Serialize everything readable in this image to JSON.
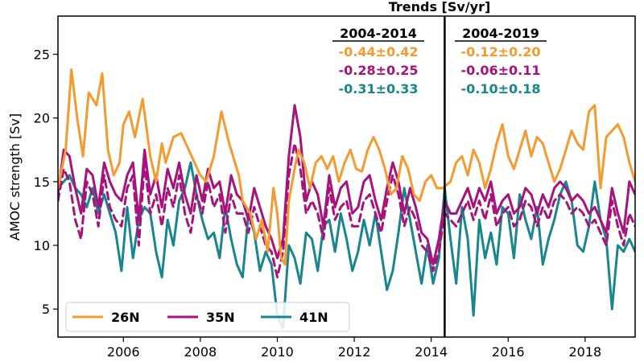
{
  "chart_data": {
    "type": "line",
    "title": "Trends [Sv/yr]",
    "ylabel": "AMOC strength [Sv]",
    "xlabel": "",
    "xlim": [
      2004.3,
      2019.3
    ],
    "ylim": [
      2.8,
      28
    ],
    "xticks": [
      2006,
      2008,
      2010,
      2012,
      2014,
      2016,
      2018
    ],
    "yticks": [
      5,
      10,
      15,
      20,
      25
    ],
    "divider_x": 2014.35,
    "legend_position": "lower-left",
    "grid": false,
    "trends": {
      "columns": [
        "2004-2014",
        "2004-2019"
      ],
      "rows": [
        {
          "series": "26N",
          "color": "#f49a2f",
          "values": [
            "-0.44±0.42",
            "-0.12±0.20"
          ]
        },
        {
          "series": "35N",
          "color": "#a8127b",
          "values": [
            "-0.28±0.25",
            "-0.06±0.11"
          ]
        },
        {
          "series": "41N",
          "color": "#17878d",
          "values": [
            "-0.31±0.33",
            "-0.10±0.18"
          ]
        }
      ]
    },
    "series": [
      {
        "name": "26N",
        "color": "#f49a2f",
        "style": "solid",
        "x": [
          2004.3,
          2004.5,
          2004.65,
          2004.8,
          2004.95,
          2005.1,
          2005.3,
          2005.45,
          2005.6,
          2005.75,
          2005.9,
          2006.0,
          2006.15,
          2006.3,
          2006.5,
          2006.7,
          2006.85,
          2007.0,
          2007.1,
          2007.3,
          2007.5,
          2007.7,
          2007.85,
          2008.0,
          2008.15,
          2008.35,
          2008.55,
          2008.75,
          2008.9,
          2009.0,
          2009.1,
          2009.3,
          2009.45,
          2009.6,
          2009.75,
          2009.9,
          2010.0,
          2010.1,
          2010.2,
          2010.3,
          2010.45,
          2010.55,
          2010.7,
          2010.85,
          2011.0,
          2011.15,
          2011.3,
          2011.45,
          2011.6,
          2011.75,
          2011.9,
          2012.05,
          2012.2,
          2012.35,
          2012.5,
          2012.65,
          2012.8,
          2012.95,
          2013.1,
          2013.25,
          2013.4,
          2013.55,
          2013.7,
          2013.85,
          2014.0,
          2014.15,
          2014.3,
          2014.5,
          2014.65,
          2014.8,
          2014.95,
          2015.1,
          2015.25,
          2015.4,
          2015.55,
          2015.7,
          2015.85,
          2016.0,
          2016.15,
          2016.3,
          2016.45,
          2016.6,
          2016.75,
          2016.9,
          2017.05,
          2017.2,
          2017.35,
          2017.5,
          2017.65,
          2017.8,
          2017.95,
          2018.1,
          2018.25,
          2018.4,
          2018.55,
          2018.7,
          2018.85,
          2019.0,
          2019.15,
          2019.3
        ],
        "y": [
          14.5,
          17.5,
          23.8,
          20.0,
          17.0,
          22.0,
          21.0,
          23.5,
          17.5,
          15.5,
          16.5,
          19.5,
          20.5,
          18.5,
          21.5,
          17.0,
          15.0,
          18.0,
          16.5,
          18.5,
          18.8,
          17.5,
          16.5,
          15.5,
          15.0,
          17.0,
          20.5,
          18.0,
          16.5,
          15.5,
          13.5,
          12.5,
          10.5,
          12.0,
          9.5,
          14.5,
          12.5,
          9.0,
          8.5,
          13.5,
          16.0,
          17.5,
          16.5,
          14.5,
          16.5,
          17.0,
          16.0,
          17.0,
          15.0,
          16.5,
          17.5,
          16.0,
          15.8,
          17.5,
          18.5,
          17.5,
          16.0,
          14.0,
          14.5,
          17.0,
          16.0,
          14.0,
          13.5,
          15.0,
          15.5,
          14.5,
          14.5,
          15.0,
          16.5,
          17.0,
          15.5,
          17.5,
          16.5,
          14.5,
          16.0,
          18.0,
          19.5,
          17.0,
          16.0,
          17.5,
          19.0,
          17.0,
          18.5,
          18.0,
          16.5,
          15.0,
          16.0,
          17.5,
          19.0,
          18.0,
          17.5,
          20.5,
          21.0,
          14.5,
          18.5,
          19.0,
          19.5,
          18.5,
          16.5,
          15.0
        ]
      },
      {
        "name": "35N",
        "color": "#a8127b",
        "style": "solid",
        "x": [
          2004.3,
          2004.45,
          2004.6,
          2004.75,
          2004.9,
          2005.05,
          2005.2,
          2005.35,
          2005.5,
          2005.65,
          2005.8,
          2005.95,
          2006.1,
          2006.25,
          2006.4,
          2006.55,
          2006.7,
          2006.85,
          2007.0,
          2007.15,
          2007.3,
          2007.45,
          2007.6,
          2007.75,
          2007.9,
          2008.05,
          2008.2,
          2008.35,
          2008.5,
          2008.65,
          2008.8,
          2008.95,
          2009.1,
          2009.25,
          2009.4,
          2009.55,
          2009.7,
          2009.85,
          2010.0,
          2010.15,
          2010.3,
          2010.45,
          2010.6,
          2010.75,
          2010.9,
          2011.05,
          2011.2,
          2011.35,
          2011.5,
          2011.65,
          2011.8,
          2011.95,
          2012.1,
          2012.25,
          2012.4,
          2012.55,
          2012.7,
          2012.85,
          2013.0,
          2013.15,
          2013.3,
          2013.45,
          2013.6,
          2013.75,
          2013.9,
          2014.05,
          2014.2,
          2014.35,
          2014.5,
          2014.65,
          2014.8,
          2014.95,
          2015.1,
          2015.25,
          2015.4,
          2015.55,
          2015.7,
          2015.85,
          2016.0,
          2016.15,
          2016.3,
          2016.45,
          2016.6,
          2016.75,
          2016.9,
          2017.05,
          2017.2,
          2017.35,
          2017.5,
          2017.65,
          2017.8,
          2017.95,
          2018.1,
          2018.25,
          2018.4,
          2018.55,
          2018.7,
          2018.85,
          2019.0,
          2019.15,
          2019.3
        ],
        "y": [
          14.0,
          17.5,
          17.0,
          14.5,
          12.5,
          16.0,
          15.5,
          13.0,
          16.5,
          15.0,
          14.0,
          13.5,
          15.5,
          16.5,
          12.0,
          17.5,
          14.0,
          15.5,
          13.0,
          16.0,
          14.5,
          16.5,
          14.0,
          12.5,
          15.5,
          13.5,
          16.0,
          14.5,
          15.0,
          12.5,
          15.5,
          14.0,
          13.5,
          12.0,
          14.5,
          13.0,
          11.5,
          10.5,
          9.0,
          10.5,
          17.0,
          21.0,
          18.5,
          13.5,
          15.0,
          14.0,
          11.5,
          15.5,
          13.0,
          14.5,
          15.0,
          12.5,
          13.0,
          15.0,
          15.5,
          13.5,
          12.0,
          14.5,
          16.5,
          15.0,
          12.5,
          14.5,
          13.0,
          11.0,
          10.5,
          8.5,
          10.5,
          13.5,
          12.5,
          12.5,
          13.5,
          14.5,
          13.0,
          14.5,
          13.5,
          15.0,
          12.5,
          13.5,
          14.0,
          12.5,
          13.0,
          14.5,
          14.0,
          12.5,
          14.0,
          13.0,
          14.5,
          15.0,
          14.5,
          13.5,
          14.0,
          13.5,
          12.5,
          13.0,
          12.0,
          11.0,
          14.5,
          12.5,
          11.0,
          15.0,
          14.0
        ]
      },
      {
        "name": "35N (dashed)",
        "color": "#a8127b",
        "style": "dashed",
        "x": [
          2004.3,
          2004.45,
          2004.6,
          2004.75,
          2004.9,
          2005.05,
          2005.2,
          2005.35,
          2005.5,
          2005.65,
          2005.8,
          2005.95,
          2006.1,
          2006.25,
          2006.4,
          2006.55,
          2006.7,
          2006.85,
          2007.0,
          2007.15,
          2007.3,
          2007.45,
          2007.6,
          2007.75,
          2007.9,
          2008.05,
          2008.2,
          2008.35,
          2008.5,
          2008.65,
          2008.8,
          2008.95,
          2009.1,
          2009.25,
          2009.4,
          2009.55,
          2009.7,
          2009.85,
          2010.0,
          2010.15,
          2010.3,
          2010.45,
          2010.6,
          2010.75,
          2010.9,
          2011.05,
          2011.2,
          2011.35,
          2011.5,
          2011.65,
          2011.8,
          2011.95,
          2012.1,
          2012.25,
          2012.4,
          2012.55,
          2012.7,
          2012.85,
          2013.0,
          2013.15,
          2013.3,
          2013.45,
          2013.6,
          2013.75,
          2013.9,
          2014.05,
          2014.2,
          2014.35,
          2014.5,
          2014.65,
          2014.8,
          2014.95,
          2015.1,
          2015.25,
          2015.4,
          2015.55,
          2015.7,
          2015.85,
          2016.0,
          2016.15,
          2016.3,
          2016.45,
          2016.6,
          2016.75,
          2016.9,
          2017.05,
          2017.2,
          2017.35,
          2017.5,
          2017.65,
          2017.8,
          2017.95,
          2018.1,
          2018.25,
          2018.4,
          2018.55,
          2018.7,
          2018.85,
          2019.0,
          2019.15,
          2019.3
        ],
        "y": [
          13.5,
          16.0,
          15.0,
          12.0,
          10.5,
          15.0,
          14.0,
          11.5,
          15.5,
          13.0,
          12.0,
          11.5,
          14.5,
          15.5,
          10.0,
          16.5,
          12.5,
          14.0,
          11.5,
          14.5,
          13.0,
          15.5,
          12.5,
          11.0,
          14.0,
          12.5,
          15.0,
          13.0,
          14.0,
          11.0,
          14.0,
          12.5,
          12.5,
          11.0,
          13.0,
          11.5,
          10.0,
          9.5,
          7.5,
          9.5,
          15.5,
          18.0,
          16.0,
          12.5,
          13.5,
          12.5,
          10.5,
          14.5,
          12.0,
          13.0,
          13.5,
          11.5,
          11.5,
          13.5,
          14.0,
          12.5,
          11.0,
          13.5,
          15.5,
          14.0,
          11.5,
          13.0,
          12.0,
          10.0,
          9.5,
          8.0,
          9.5,
          12.5,
          12.0,
          11.5,
          12.5,
          13.5,
          12.0,
          13.5,
          12.0,
          14.0,
          11.5,
          12.5,
          13.0,
          11.5,
          12.0,
          13.5,
          13.0,
          11.5,
          13.0,
          12.0,
          13.5,
          14.0,
          13.5,
          12.5,
          13.0,
          12.5,
          11.5,
          12.0,
          11.0,
          10.0,
          13.5,
          11.5,
          10.0,
          12.5,
          11.5
        ]
      },
      {
        "name": "41N",
        "color": "#17878d",
        "style": "solid",
        "x": [
          2004.3,
          2004.45,
          2004.6,
          2004.75,
          2004.9,
          2005.05,
          2005.2,
          2005.35,
          2005.5,
          2005.65,
          2005.8,
          2005.95,
          2006.1,
          2006.25,
          2006.4,
          2006.55,
          2006.7,
          2006.85,
          2007.0,
          2007.15,
          2007.3,
          2007.45,
          2007.6,
          2007.75,
          2007.9,
          2008.05,
          2008.2,
          2008.35,
          2008.5,
          2008.65,
          2008.8,
          2008.95,
          2009.1,
          2009.25,
          2009.4,
          2009.55,
          2009.7,
          2009.85,
          2010.0,
          2010.15,
          2010.3,
          2010.45,
          2010.6,
          2010.75,
          2010.9,
          2011.05,
          2011.2,
          2011.35,
          2011.5,
          2011.65,
          2011.8,
          2011.95,
          2012.1,
          2012.25,
          2012.4,
          2012.55,
          2012.7,
          2012.85,
          2013.0,
          2013.15,
          2013.3,
          2013.45,
          2013.6,
          2013.75,
          2013.9,
          2014.05,
          2014.2,
          2014.35,
          2014.5,
          2014.65,
          2014.8,
          2014.95,
          2015.1,
          2015.25,
          2015.4,
          2015.55,
          2015.7,
          2015.85,
          2016.0,
          2016.15,
          2016.3,
          2016.45,
          2016.6,
          2016.75,
          2016.9,
          2017.05,
          2017.2,
          2017.35,
          2017.5,
          2017.65,
          2017.8,
          2017.95,
          2018.1,
          2018.25,
          2018.4,
          2018.55,
          2018.7,
          2018.85,
          2019.0,
          2019.15,
          2019.3
        ],
        "y": [
          14.5,
          15.0,
          15.5,
          14.5,
          14.0,
          13.0,
          14.5,
          12.5,
          14.0,
          12.5,
          11.0,
          8.0,
          13.0,
          9.0,
          12.0,
          13.0,
          12.5,
          9.5,
          7.5,
          12.0,
          10.0,
          13.5,
          14.5,
          16.5,
          14.0,
          12.0,
          10.5,
          11.0,
          9.0,
          13.0,
          10.5,
          8.5,
          7.5,
          12.5,
          11.0,
          8.0,
          9.5,
          8.5,
          4.5,
          3.5,
          10.0,
          9.0,
          7.0,
          11.0,
          10.5,
          8.0,
          11.5,
          12.0,
          9.5,
          12.5,
          10.5,
          8.0,
          9.5,
          12.0,
          10.0,
          12.5,
          9.5,
          6.5,
          8.0,
          11.0,
          14.5,
          12.0,
          9.5,
          7.0,
          10.0,
          7.0,
          9.0,
          14.5,
          10.5,
          7.0,
          13.0,
          10.5,
          4.5,
          12.0,
          9.0,
          11.0,
          8.5,
          13.0,
          12.5,
          9.0,
          14.0,
          12.0,
          10.5,
          13.0,
          8.5,
          10.5,
          12.0,
          14.0,
          15.0,
          13.5,
          10.0,
          9.5,
          11.5,
          15.0,
          12.0,
          10.5,
          5.0,
          10.0,
          9.5,
          10.5,
          9.5
        ]
      }
    ]
  }
}
